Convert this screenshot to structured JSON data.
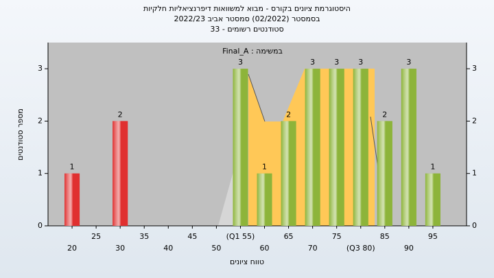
{
  "chart_data": {
    "type": "bar",
    "title": "היסטוגרמת ציונים בקורס - מבוא למשוואות דיפרנציאליות חלקיות",
    "subtitle": "בסמסטר  (02/2022)  סמסטר אביב 2022/23",
    "subtitle2": "סטודנטים רשומים - 33",
    "annotation": "במשימה : Final_A",
    "x_label": "טווח ציונים",
    "y_label": "מספר סטודנטים",
    "x": [
      20,
      30,
      55,
      60,
      65,
      70,
      75,
      80,
      85,
      90,
      95
    ],
    "values": [
      1,
      2,
      3,
      1,
      2,
      3,
      3,
      3,
      2,
      3,
      1
    ],
    "colors": [
      "#e03030",
      "#e03030",
      "#8db43a",
      "#8db43a",
      "#8db43a",
      "#8db43a",
      "#8db43a",
      "#8db43a",
      "#8db43a",
      "#8db43a",
      "#8db43a"
    ],
    "xlim": [
      15,
      102
    ],
    "xticks": [
      20,
      25,
      30,
      35,
      40,
      45,
      50,
      {
        "value": 55,
        "label": "(Q1 55)"
      },
      60,
      65,
      70,
      75,
      {
        "value": 80,
        "label": "(Q3 80)"
      },
      85,
      90,
      95
    ],
    "ylim": [
      0,
      3.5
    ],
    "yticks": [
      0,
      1,
      2,
      3
    ]
  }
}
